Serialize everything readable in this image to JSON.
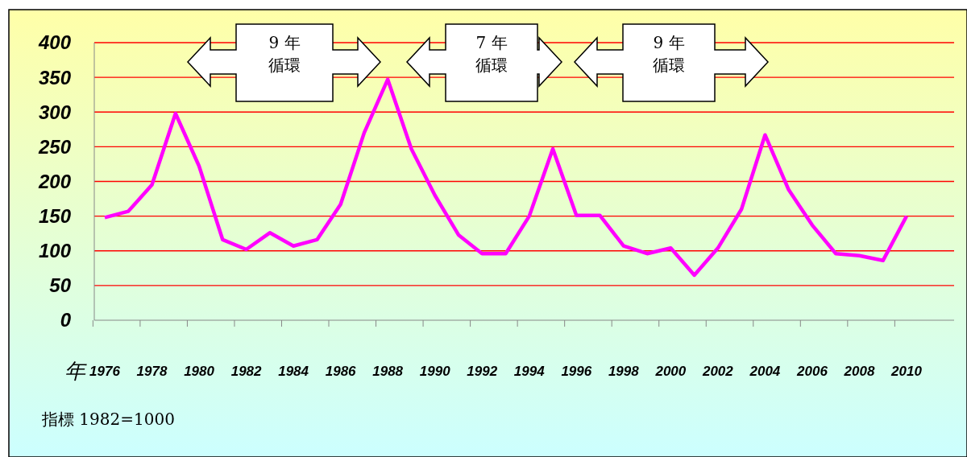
{
  "chart_data": {
    "type": "line",
    "xlabel": "年",
    "categories": [
      "1976",
      null,
      "1978",
      null,
      "1980",
      null,
      "1982",
      null,
      "1984",
      null,
      "1986",
      null,
      "1988",
      null,
      "1990",
      null,
      "1992",
      null,
      "1994",
      null,
      "1996",
      null,
      "1998",
      null,
      "2000",
      null,
      "2002",
      null,
      "2004",
      null,
      "2006",
      null,
      "2008",
      null,
      "2010"
    ],
    "series": [
      {
        "color": "#ff00ff",
        "values": [
          148,
          157,
          195,
          298,
          222,
          116,
          102,
          126,
          107,
          116,
          167,
          270,
          347,
          247,
          180,
          123,
          96,
          96,
          150,
          247,
          151,
          151,
          107,
          96,
          104,
          65,
          104,
          160,
          267,
          188,
          137,
          96,
          93,
          86,
          150
        ]
      }
    ],
    "ylim": [
      0,
      400
    ],
    "yticks": [
      0,
      50,
      100,
      150,
      200,
      250,
      300,
      350,
      400
    ],
    "grid": "y",
    "marker": "none",
    "line_style": "solid",
    "annotations": [
      "9 年",
      "循環",
      "7 年",
      "循環",
      "9 年",
      "循環",
      "指標 1982=1000"
    ]
  }
}
